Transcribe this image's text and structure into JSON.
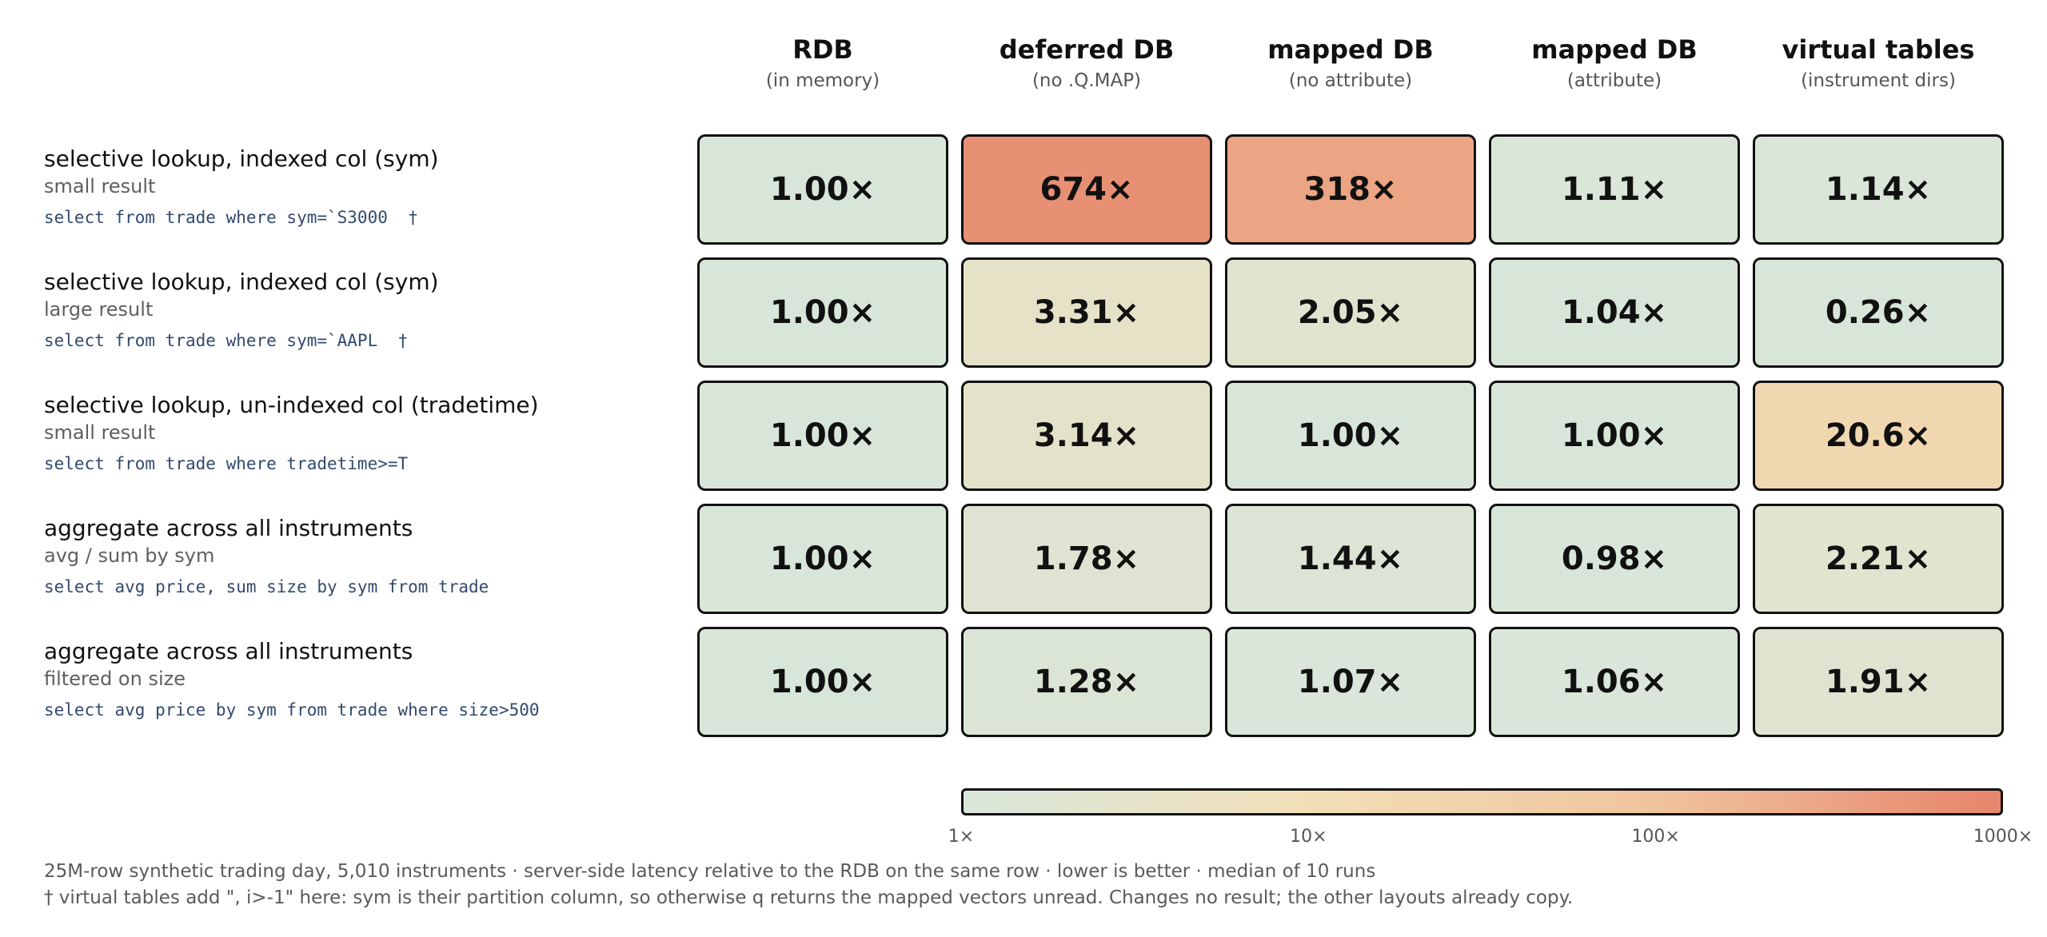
{
  "chart_data": {
    "type": "heatmap",
    "columns": [
      {
        "title": "RDB",
        "subtitle": "(in memory)"
      },
      {
        "title": "deferred DB",
        "subtitle": "(no .Q.MAP)"
      },
      {
        "title": "mapped DB",
        "subtitle": "(no attribute)"
      },
      {
        "title": "mapped DB",
        "subtitle": "(attribute)"
      },
      {
        "title": "virtual tables",
        "subtitle": "(instrument dirs)"
      }
    ],
    "rows": [
      {
        "title": "selective lookup, indexed col (sym)",
        "subtitle": "small result",
        "code": "select from trade where sym=`S3000  †",
        "values": [
          1.0,
          674,
          318,
          1.11,
          1.14
        ],
        "labels": [
          "1.00×",
          "674×",
          "318×",
          "1.11×",
          "1.14×"
        ]
      },
      {
        "title": "selective lookup, indexed col (sym)",
        "subtitle": "large result",
        "code": "select from trade where sym=`AAPL  †",
        "values": [
          1.0,
          3.31,
          2.05,
          1.04,
          0.26
        ],
        "labels": [
          "1.00×",
          "3.31×",
          "2.05×",
          "1.04×",
          "0.26×"
        ]
      },
      {
        "title": "selective lookup, un-indexed col (tradetime)",
        "subtitle": "small result",
        "code": "select from trade where tradetime>=T",
        "values": [
          1.0,
          3.14,
          1.0,
          1.0,
          20.6
        ],
        "labels": [
          "1.00×",
          "3.14×",
          "1.00×",
          "1.00×",
          "20.6×"
        ]
      },
      {
        "title": "aggregate across all instruments",
        "subtitle": "avg / sum by sym",
        "code": "select avg price, sum size by sym from trade",
        "values": [
          1.0,
          1.78,
          1.44,
          0.98,
          2.21
        ],
        "labels": [
          "1.00×",
          "1.78×",
          "1.44×",
          "0.98×",
          "2.21×"
        ]
      },
      {
        "title": "aggregate across all instruments",
        "subtitle": "filtered on size",
        "code": "select avg price by sym from trade where size>500",
        "values": [
          1.0,
          1.28,
          1.07,
          1.06,
          1.91
        ],
        "labels": [
          "1.00×",
          "1.28×",
          "1.07×",
          "1.06×",
          "1.91×"
        ]
      }
    ],
    "scale": "log",
    "colorbar": {
      "range": [
        1,
        1000
      ],
      "ticks": [
        {
          "value": 1,
          "label": "1×"
        },
        {
          "value": 10,
          "label": "10×"
        },
        {
          "value": 100,
          "label": "100×"
        },
        {
          "value": 1000,
          "label": "1000×"
        }
      ],
      "colors": [
        "#d8e6da",
        "#f1dfb8",
        "#f0c59e",
        "#e6856b"
      ]
    }
  },
  "footnotes": [
    "25M-row synthetic trading day, 5,010 instruments · server-side latency relative to the RDB on the same row · lower is better · median of 10 runs",
    "† virtual tables add \", i>-1\" here: sym is their partition column, so otherwise q returns the mapped vectors unread. Changes no result; the other layouts already copy."
  ]
}
